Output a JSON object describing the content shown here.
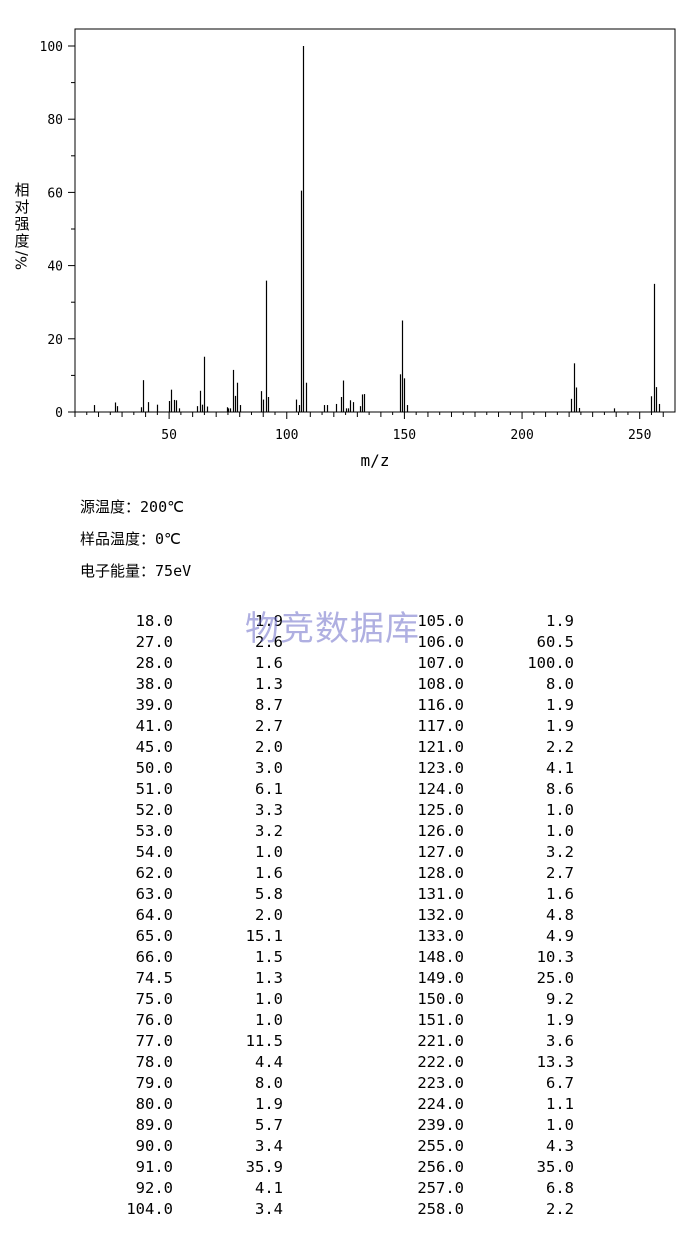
{
  "chart_data": {
    "type": "bar",
    "xlabel": "m/z",
    "ylabel": "相对强度 %/",
    "xlim": [
      10,
      265
    ],
    "ylim": [
      0,
      105
    ],
    "x_ticks": [
      "50",
      "100",
      "150",
      "200",
      "250"
    ],
    "y_ticks": [
      "0",
      "20",
      "40",
      "60",
      "80",
      "100"
    ],
    "x": [
      18,
      27,
      28,
      38,
      39,
      41,
      45,
      50,
      51,
      52,
      53,
      54,
      62,
      63,
      64,
      65,
      66,
      74.5,
      75,
      76,
      77,
      78,
      79,
      80,
      89,
      90,
      91,
      92,
      104,
      105,
      106,
      107,
      108,
      116,
      117,
      121,
      123,
      124,
      125,
      126,
      127,
      128,
      131,
      132,
      133,
      148,
      149,
      150,
      151,
      221,
      222,
      223,
      224,
      239,
      255,
      256,
      257,
      258
    ],
    "values": [
      1.9,
      2.6,
      1.6,
      1.3,
      8.7,
      2.7,
      2.0,
      3.0,
      6.1,
      3.3,
      3.2,
      1.0,
      1.6,
      5.8,
      2.0,
      15.1,
      1.5,
      1.3,
      1.0,
      1.0,
      11.5,
      4.4,
      8.0,
      1.9,
      5.7,
      3.4,
      35.9,
      4.1,
      3.4,
      1.9,
      60.5,
      100.0,
      8.0,
      1.9,
      1.9,
      2.2,
      4.1,
      8.6,
      1.0,
      1.0,
      3.2,
      2.7,
      1.6,
      4.8,
      4.9,
      10.3,
      25.0,
      9.2,
      1.9,
      3.6,
      13.3,
      6.7,
      1.1,
      1.0,
      4.3,
      35.0,
      6.8,
      2.2
    ]
  },
  "conditions": {
    "source_temp": {
      "label": "源温度：",
      "value": "200℃"
    },
    "sample_temp": {
      "label": "样品温度：",
      "value": "0℃"
    },
    "electron_energy": {
      "label": "电子能量：",
      "value": "75eV"
    }
  },
  "ylabel_chars": [
    "相",
    "对",
    "强",
    "度"
  ],
  "ylabel_unit": "%/",
  "watermark": "物竞数据库",
  "peak_table": [
    [
      "18.0",
      "1.9",
      "105.0",
      "1.9"
    ],
    [
      "27.0",
      "2.6",
      "106.0",
      "60.5"
    ],
    [
      "28.0",
      "1.6",
      "107.0",
      "100.0"
    ],
    [
      "38.0",
      "1.3",
      "108.0",
      "8.0"
    ],
    [
      "39.0",
      "8.7",
      "116.0",
      "1.9"
    ],
    [
      "41.0",
      "2.7",
      "117.0",
      "1.9"
    ],
    [
      "45.0",
      "2.0",
      "121.0",
      "2.2"
    ],
    [
      "50.0",
      "3.0",
      "123.0",
      "4.1"
    ],
    [
      "51.0",
      "6.1",
      "124.0",
      "8.6"
    ],
    [
      "52.0",
      "3.3",
      "125.0",
      "1.0"
    ],
    [
      "53.0",
      "3.2",
      "126.0",
      "1.0"
    ],
    [
      "54.0",
      "1.0",
      "127.0",
      "3.2"
    ],
    [
      "62.0",
      "1.6",
      "128.0",
      "2.7"
    ],
    [
      "63.0",
      "5.8",
      "131.0",
      "1.6"
    ],
    [
      "64.0",
      "2.0",
      "132.0",
      "4.8"
    ],
    [
      "65.0",
      "15.1",
      "133.0",
      "4.9"
    ],
    [
      "66.0",
      "1.5",
      "148.0",
      "10.3"
    ],
    [
      "74.5",
      "1.3",
      "149.0",
      "25.0"
    ],
    [
      "75.0",
      "1.0",
      "150.0",
      "9.2"
    ],
    [
      "76.0",
      "1.0",
      "151.0",
      "1.9"
    ],
    [
      "77.0",
      "11.5",
      "221.0",
      "3.6"
    ],
    [
      "78.0",
      "4.4",
      "222.0",
      "13.3"
    ],
    [
      "79.0",
      "8.0",
      "223.0",
      "6.7"
    ],
    [
      "80.0",
      "1.9",
      "224.0",
      "1.1"
    ],
    [
      "89.0",
      "5.7",
      "239.0",
      "1.0"
    ],
    [
      "90.0",
      "3.4",
      "255.0",
      "4.3"
    ],
    [
      "91.0",
      "35.9",
      "256.0",
      "35.0"
    ],
    [
      "92.0",
      "4.1",
      "257.0",
      "6.8"
    ],
    [
      "104.0",
      "3.4",
      "258.0",
      "2.2"
    ]
  ]
}
